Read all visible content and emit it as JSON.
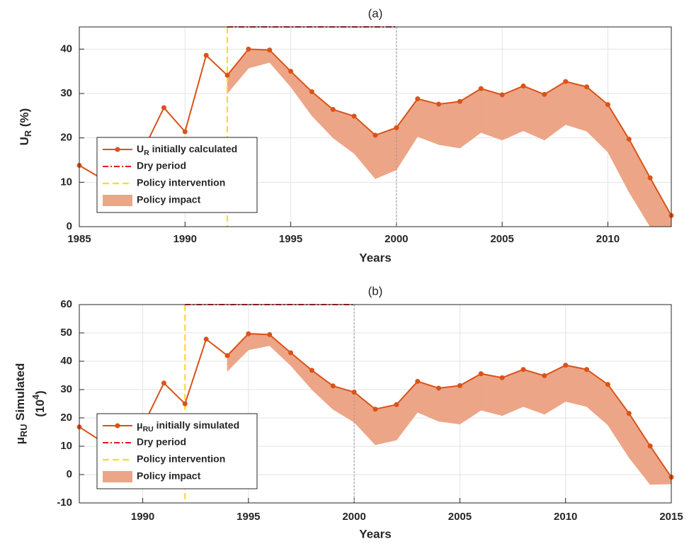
{
  "chart_data": [
    {
      "type": "line",
      "title": "(a)",
      "xlabel": "Years",
      "ylabel": "U_R (%)",
      "x": [
        1985,
        1986,
        1987,
        1988,
        1989,
        1990,
        1991,
        1992,
        1993,
        1994,
        1995,
        1996,
        1997,
        1998,
        1999,
        2000,
        2001,
        2002,
        2003,
        2004,
        2005,
        2006,
        2007,
        2008,
        2009,
        2010,
        2011,
        2012,
        2013
      ],
      "series": [
        {
          "name": "U_R initially calculated",
          "color": "#d95319",
          "values": [
            13.8,
            11.0,
            12.0,
            17.0,
            26.8,
            21.4,
            38.6,
            34.1,
            40.0,
            39.8,
            35.0,
            30.4,
            26.4,
            24.9,
            20.6,
            22.3,
            28.8,
            27.6,
            28.2,
            31.1,
            29.7,
            31.7,
            29.8,
            32.7,
            31.5,
            27.5,
            19.7,
            11.0,
            2.5
          ]
        },
        {
          "name": "Policy impact",
          "color": "#eda587",
          "values": [
            null,
            null,
            null,
            null,
            null,
            null,
            null,
            30.0,
            35.7,
            37.0,
            31.5,
            25.0,
            20.0,
            16.5,
            10.8,
            12.8,
            20.3,
            18.5,
            17.7,
            21.2,
            19.5,
            21.6,
            19.5,
            23.0,
            21.5,
            16.8,
            7.8,
            0,
            0
          ]
        }
      ],
      "dry_period": {
        "name": "Dry period",
        "color": "#e8141c",
        "x": [
          1992,
          2000
        ]
      },
      "policy_intervention": {
        "name": "Policy intervention",
        "color": "#ffd92f",
        "x": 1992
      },
      "xlim": [
        1985,
        2013
      ],
      "xticks": [
        1985,
        1990,
        1995,
        2000,
        2005,
        2010
      ],
      "ylim": [
        0,
        45
      ],
      "yticks": [
        0,
        10,
        20,
        30,
        40
      ],
      "grid": true,
      "legend": "lower left"
    },
    {
      "type": "line",
      "title": "(b)",
      "xlabel": "Years",
      "ylabel": [
        "μ_RU Simulated",
        "(10^4)"
      ],
      "x": [
        1987,
        1988,
        1989,
        1990,
        1991,
        1992,
        1993,
        1994,
        1995,
        1996,
        1997,
        1998,
        1999,
        2000,
        2001,
        2002,
        2003,
        2004,
        2005,
        2006,
        2007,
        2008,
        2009,
        2010,
        2011,
        2012,
        2013,
        2014,
        2015
      ],
      "series": [
        {
          "name": "μ_RU initially simulated",
          "color": "#d95319",
          "values": [
            16.8,
            12.0,
            13.0,
            17.0,
            32.3,
            25.0,
            47.8,
            42.0,
            49.7,
            49.4,
            43.0,
            36.8,
            31.3,
            29.1,
            23.1,
            24.7,
            32.9,
            30.5,
            31.4,
            35.6,
            34.2,
            37.1,
            34.9,
            38.6,
            37.1,
            31.8,
            21.6,
            10.1,
            -0.9
          ]
        },
        {
          "name": "Policy impact",
          "color": "#eda587",
          "values": [
            null,
            null,
            null,
            null,
            null,
            null,
            null,
            36.5,
            44.0,
            45.5,
            38.5,
            30.0,
            23.0,
            18.5,
            10.5,
            12.2,
            22.0,
            18.8,
            17.8,
            22.7,
            20.8,
            24.0,
            21.3,
            25.8,
            24.0,
            17.5,
            6.0,
            -3.5,
            -3.3
          ]
        }
      ],
      "dry_period": {
        "name": "Dry period",
        "color": "#e8141c",
        "x": [
          1992,
          2000
        ]
      },
      "policy_intervention": {
        "name": "Policy intervention",
        "color": "#ffd92f",
        "x": 1992
      },
      "xlim": [
        1987,
        2015
      ],
      "xticks": [
        1990,
        1995,
        2000,
        2005,
        2010,
        2015
      ],
      "ylim": [
        -10,
        60
      ],
      "yticks": [
        -10,
        0,
        10,
        20,
        30,
        40,
        50,
        60
      ],
      "grid": true,
      "legend": "lower left"
    }
  ]
}
